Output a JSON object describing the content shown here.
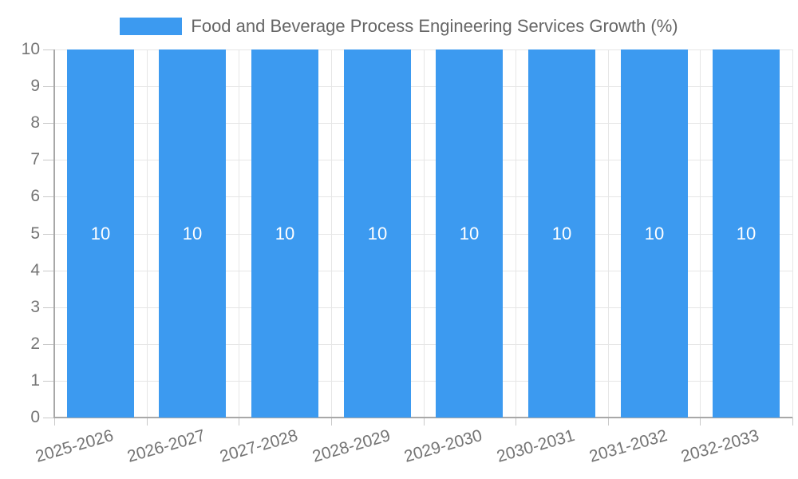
{
  "chart_data": {
    "type": "bar",
    "title": "",
    "legend": {
      "position": "top",
      "label": "Food and Beverage Process Engineering Services Growth (%)"
    },
    "categories": [
      "2025-2026",
      "2026-2027",
      "2027-2028",
      "2028-2029",
      "2029-2030",
      "2030-2031",
      "2031-2032",
      "2032-2033"
    ],
    "series": [
      {
        "name": "Food and Beverage Process Engineering Services Growth (%)",
        "values": [
          10,
          10,
          10,
          10,
          10,
          10,
          10,
          10
        ]
      }
    ],
    "value_labels": [
      "10",
      "10",
      "10",
      "10",
      "10",
      "10",
      "10",
      "10"
    ],
    "xlabel": "",
    "ylabel": "",
    "ylim": [
      0,
      10
    ],
    "yticks": [
      "0",
      "1",
      "2",
      "3",
      "4",
      "5",
      "6",
      "7",
      "8",
      "9",
      "10"
    ],
    "grid": "horizontal and vertical, light gray",
    "x_label_rotation_deg": -16,
    "colors": {
      "bar": "#3C9AF0",
      "axis_text": "#757575",
      "legend_text": "#666666",
      "value_label_text": "#FFFFFF",
      "gridline": "#E6E6E6",
      "axis_line": "#A8A8A8",
      "tick_mark": "#C9C9C9",
      "background": "#FFFFFF"
    }
  }
}
